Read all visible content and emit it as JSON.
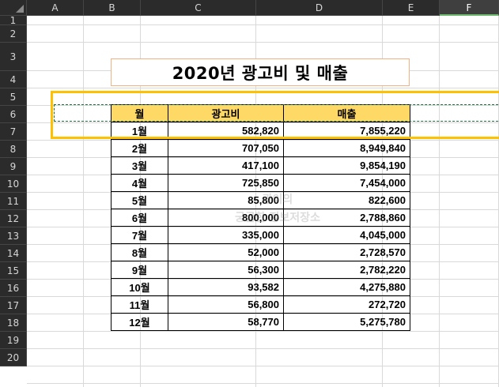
{
  "columns": [
    {
      "label": "A",
      "selected": false
    },
    {
      "label": "B",
      "selected": false
    },
    {
      "label": "C",
      "selected": false
    },
    {
      "label": "D",
      "selected": false
    },
    {
      "label": "E",
      "selected": false
    },
    {
      "label": "F",
      "selected": true
    }
  ],
  "rows": [
    "1",
    "2",
    "3",
    "4",
    "5",
    "6",
    "7",
    "8",
    "9",
    "10",
    "11",
    "12",
    "13",
    "14",
    "15",
    "16",
    "17",
    "18",
    "19",
    "20"
  ],
  "title": "2020년 광고비 및 매출",
  "table": {
    "headers": [
      "월",
      "광고비",
      "매출"
    ],
    "rows": [
      [
        "1월",
        "582,820",
        "7,855,220"
      ],
      [
        "2월",
        "707,050",
        "8,949,840"
      ],
      [
        "3월",
        "417,100",
        "9,854,190"
      ],
      [
        "4월",
        "725,850",
        "7,454,000"
      ],
      [
        "5월",
        "85,800",
        "822,600"
      ],
      [
        "6월",
        "800,000",
        "2,788,860"
      ],
      [
        "7월",
        "335,000",
        "4,045,000"
      ],
      [
        "8월",
        "52,000",
        "2,728,570"
      ],
      [
        "9월",
        "56,300",
        "2,782,220"
      ],
      [
        "10월",
        "93,582",
        "4,275,880"
      ],
      [
        "11월",
        "56,800",
        "272,720"
      ],
      [
        "12월",
        "58,770",
        "5,275,780"
      ]
    ]
  },
  "watermark": {
    "line1": "광이의",
    "line2": "궁금한 정보저장소"
  },
  "colors": {
    "header_fill": "#ffd966",
    "title_border": "#f4b183",
    "selection_highlight": "#ffc000",
    "copy_marquee": "#1e6b3e",
    "grid_header_bg": "#2b2b2b"
  }
}
